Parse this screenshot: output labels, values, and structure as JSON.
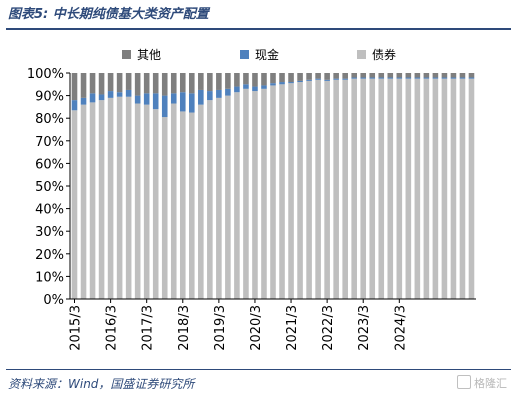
{
  "title": "图表5:  中长期纯债基大类资产配置",
  "source": "资料来源：Wind，国盛证券研究所",
  "watermark": "格隆汇",
  "chart_data": {
    "type": "bar",
    "stacked": true,
    "ylim": [
      0,
      100
    ],
    "yticks": [
      "0%",
      "10%",
      "20%",
      "30%",
      "40%",
      "50%",
      "60%",
      "70%",
      "80%",
      "90%",
      "100%"
    ],
    "x_tick_labels": [
      "2015/3",
      "2016/3",
      "2017/3",
      "2018/3",
      "2019/3",
      "2020/3",
      "2021/3",
      "2022/3",
      "2023/3",
      "2024/3"
    ],
    "x_tick_every": 4,
    "legend": [
      "其他",
      "现金",
      "债券"
    ],
    "colors": {
      "其他": "#7f7f7f",
      "现金": "#4f81bd",
      "债券": "#bfbfbf"
    },
    "grid": false,
    "series": [
      {
        "name": "债券",
        "values": [
          83.5,
          86.0,
          87.0,
          88.0,
          89.0,
          89.5,
          89.5,
          86.5,
          86.0,
          84.0,
          80.5,
          86.5,
          83.0,
          82.5,
          86.0,
          88.0,
          89.0,
          90.0,
          91.5,
          93.0,
          92.0,
          93.0,
          94.5,
          95.0,
          95.5,
          96.0,
          96.5,
          97.0,
          96.5,
          97.0,
          97.0,
          97.5,
          97.5,
          97.5,
          97.5,
          97.5,
          97.5,
          97.5,
          97.5,
          97.5,
          97.5,
          97.5,
          97.5,
          97.5,
          97.5
        ]
      },
      {
        "name": "现金",
        "values": [
          4.5,
          3.0,
          4.0,
          2.5,
          3.0,
          2.0,
          3.0,
          3.5,
          5.0,
          7.0,
          9.5,
          4.5,
          8.5,
          8.5,
          6.5,
          4.0,
          3.5,
          3.0,
          2.5,
          2.0,
          2.0,
          1.5,
          1.0,
          1.0,
          0.5,
          0.5,
          0.5,
          0.5,
          0.5,
          0.5,
          0.5,
          0.5,
          0.5,
          0.5,
          0.5,
          0.5,
          0.5,
          0.5,
          0.5,
          0.5,
          0.5,
          0.5,
          0.5,
          0.5,
          0.5
        ]
      },
      {
        "name": "其他",
        "values": [
          12.0,
          11.0,
          9.0,
          9.5,
          8.0,
          8.5,
          7.5,
          10.0,
          9.0,
          9.0,
          10.0,
          9.0,
          8.5,
          9.0,
          7.5,
          8.0,
          7.5,
          7.0,
          6.0,
          5.0,
          6.0,
          5.5,
          4.5,
          4.0,
          4.0,
          3.5,
          3.0,
          2.5,
          3.0,
          2.5,
          2.5,
          2.0,
          2.0,
          2.0,
          2.0,
          2.0,
          2.0,
          2.0,
          2.0,
          2.0,
          2.0,
          2.0,
          2.0,
          2.0,
          2.0
        ]
      }
    ]
  }
}
